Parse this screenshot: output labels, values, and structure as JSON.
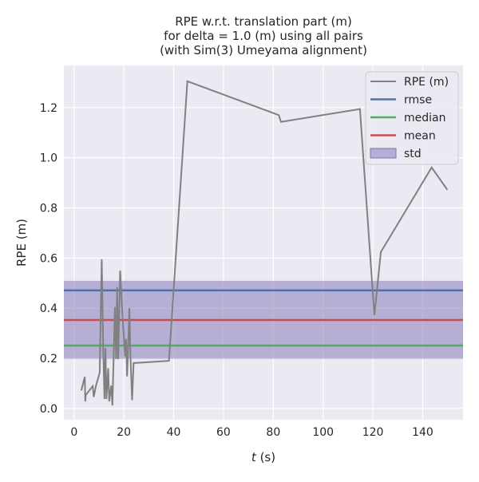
{
  "chart_data": {
    "type": "line",
    "title": [
      "RPE w.r.t. translation part (m)",
      "for delta = 1.0 (m) using all pairs",
      "(with Sim(3) Umeyama alignment)"
    ],
    "xlabel_italic": "t",
    "xlabel_rest": " (s)",
    "ylabel": "RPE (m)",
    "xlim": [
      -4.1,
      156.2
    ],
    "ylim": [
      -0.045,
      1.368
    ],
    "xticks": [
      0,
      20,
      40,
      60,
      80,
      100,
      120,
      140
    ],
    "xtick_labels": [
      "0",
      "20",
      "40",
      "60",
      "80",
      "100",
      "120",
      "140"
    ],
    "yticks": [
      0,
      0.2,
      0.4,
      0.6,
      0.8,
      1.0,
      1.2
    ],
    "ytick_labels": [
      "0.0",
      "0.2",
      "0.4",
      "0.6",
      "0.8",
      "1.0",
      "1.2"
    ],
    "grid": true,
    "legend_position": "top-right",
    "series": {
      "name": "RPE (m)",
      "color": "#808080",
      "x": [
        2.9,
        4.3,
        4.5,
        4.7,
        7.5,
        7.9,
        8.8,
        10.3,
        11.1,
        11.7,
        12.2,
        12.6,
        13.0,
        13.7,
        14.1,
        14.9,
        15.4,
        16.4,
        16.9,
        17.3,
        17.7,
        18.5,
        19.4,
        20.5,
        20.9,
        21.3,
        21.8,
        22.2,
        22.6,
        23.3,
        23.9,
        38.1,
        45.5,
        82.2,
        83.1,
        114.8,
        120.6,
        123.2,
        143.6,
        149.9
      ],
      "y": [
        0.072,
        0.126,
        0.028,
        0.054,
        0.089,
        0.046,
        0.091,
        0.144,
        0.595,
        0.24,
        0.038,
        0.24,
        0.038,
        0.16,
        0.028,
        0.091,
        0.012,
        0.404,
        0.197,
        0.484,
        0.197,
        0.55,
        0.378,
        0.208,
        0.277,
        0.128,
        0.27,
        0.4,
        0.219,
        0.033,
        0.181,
        0.19,
        1.305,
        1.17,
        1.143,
        1.194,
        0.372,
        0.624,
        0.961,
        0.872
      ]
    },
    "stats": {
      "rmse": 0.471,
      "median": 0.251,
      "mean": 0.353,
      "std_low": 0.198,
      "std_high": 0.509
    },
    "legend": [
      {
        "label": "RPE (m)",
        "color": "#808080",
        "kind": "line"
      },
      {
        "label": "rmse",
        "color": "#4c72b0",
        "kind": "line"
      },
      {
        "label": "median",
        "color": "#55a868",
        "kind": "line"
      },
      {
        "label": "mean",
        "color": "#c44e52",
        "kind": "line"
      },
      {
        "label": "std",
        "color": "#8172b3",
        "kind": "patch"
      }
    ]
  }
}
